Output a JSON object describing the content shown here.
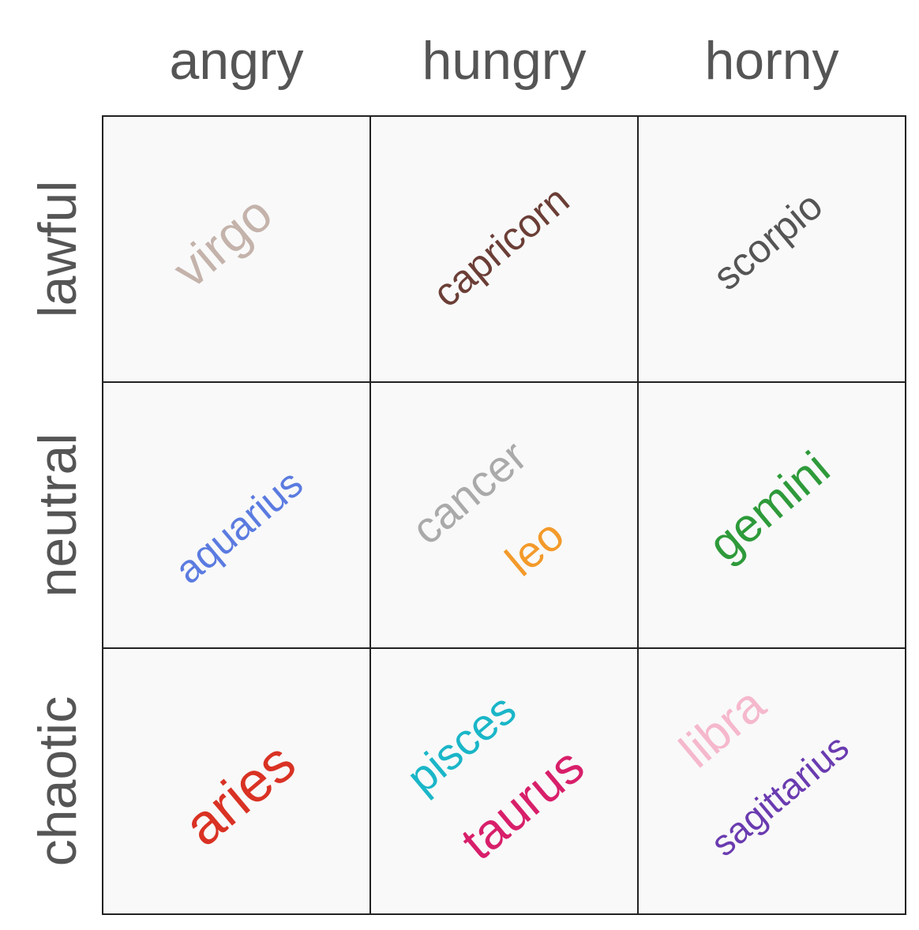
{
  "columns": [
    "angry",
    "hungry",
    "horny"
  ],
  "rows": [
    "lawful",
    "neutral",
    "chaotic"
  ],
  "cells": [
    [
      [
        {
          "label": "virgo",
          "color": "#c4b3ab"
        }
      ],
      [
        {
          "label": "capricorn",
          "color": "#6b3e36"
        }
      ],
      [
        {
          "label": "scorpio",
          "color": "#555555"
        }
      ]
    ],
    [
      [
        {
          "label": "aquarius",
          "color": "#5b7be0"
        }
      ],
      [
        {
          "label": "cancer",
          "color": "#aaaaaa"
        },
        {
          "label": "leo",
          "color": "#f39a2b"
        }
      ],
      [
        {
          "label": "gemini",
          "color": "#2e9a3a"
        }
      ]
    ],
    [
      [
        {
          "label": "aries",
          "color": "#d93224"
        }
      ],
      [
        {
          "label": "pisces",
          "color": "#1ab6c8"
        },
        {
          "label": "taurus",
          "color": "#d81f6a"
        }
      ],
      [
        {
          "label": "libra",
          "color": "#f5b8cc"
        },
        {
          "label": "sagittarius",
          "color": "#6a3bb0"
        }
      ]
    ]
  ]
}
